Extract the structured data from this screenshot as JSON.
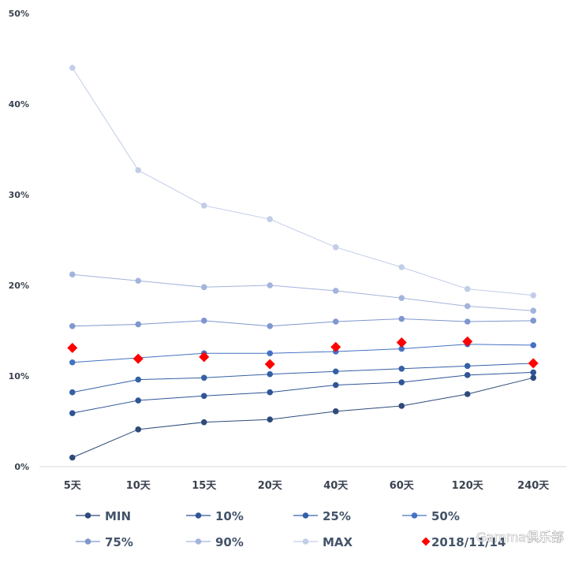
{
  "chart_data": {
    "type": "line",
    "title": "",
    "xlabel": "",
    "ylabel": "",
    "categories": [
      "5天",
      "10天",
      "15天",
      "20天",
      "40天",
      "60天",
      "120天",
      "240天"
    ],
    "y_ticks": [
      "0%",
      "10%",
      "20%",
      "30%",
      "40%",
      "50%"
    ],
    "ylim": [
      0,
      50
    ],
    "y_unit": "%",
    "grid": false,
    "legend_position": "bottom",
    "series": [
      {
        "name": "MIN",
        "values": [
          1.0,
          4.1,
          4.9,
          5.2,
          6.1,
          6.7,
          8.0,
          9.8
        ],
        "color": "#2e4a7a",
        "marker": "circle"
      },
      {
        "name": "10%",
        "values": [
          5.9,
          7.3,
          7.8,
          8.2,
          9.0,
          9.3,
          10.1,
          10.4
        ],
        "color": "#2f5597",
        "marker": "circle"
      },
      {
        "name": "25%",
        "values": [
          8.2,
          9.6,
          9.8,
          10.2,
          10.5,
          10.8,
          11.1,
          11.4
        ],
        "color": "#3560a6",
        "marker": "circle"
      },
      {
        "name": "50%",
        "values": [
          11.5,
          12.0,
          12.5,
          12.5,
          12.7,
          13.0,
          13.5,
          13.4
        ],
        "color": "#4472c4",
        "marker": "circle"
      },
      {
        "name": "75%",
        "values": [
          15.5,
          15.7,
          16.1,
          15.5,
          16.0,
          16.3,
          16.0,
          16.1
        ],
        "color": "#7f96cf",
        "marker": "circle"
      },
      {
        "name": "90%",
        "values": [
          21.2,
          20.5,
          19.8,
          20.0,
          19.4,
          18.6,
          17.7,
          17.2
        ],
        "color": "#a3b4dc",
        "marker": "circle"
      },
      {
        "name": "MAX",
        "values": [
          44.0,
          32.7,
          28.8,
          27.3,
          24.2,
          22.0,
          19.6,
          18.9
        ],
        "color": "#c2cde8",
        "marker": "circle"
      },
      {
        "name": "2018/11/14",
        "values": [
          13.1,
          11.9,
          12.1,
          11.3,
          13.2,
          13.7,
          13.8,
          11.4
        ],
        "color": "#ff0000",
        "marker": "diamond",
        "line": false
      }
    ]
  },
  "legend_labels": [
    "MIN",
    "10%",
    "25%",
    "50%",
    "75%",
    "90%",
    "MAX",
    "2018/11/14"
  ],
  "watermark": "Gamma俱乐部"
}
